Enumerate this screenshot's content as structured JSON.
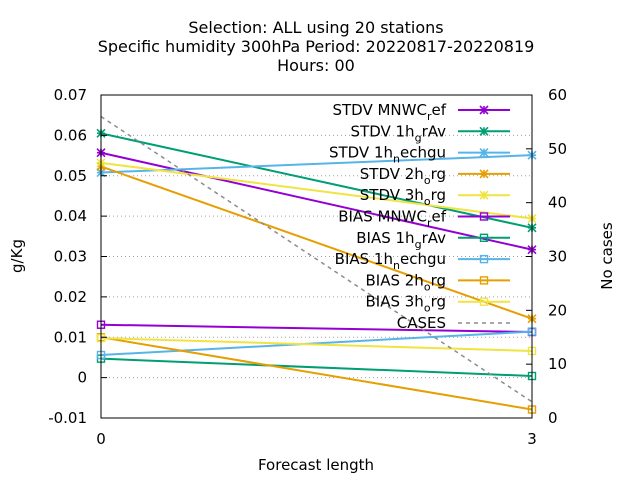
{
  "chart_data": {
    "type": "line",
    "title_lines": [
      "Selection: ALL using    20 stations",
      "Specific humidity 300hPa   Period: 20220817-20220819",
      "Hours:  00"
    ],
    "xlabel": "Forecast length",
    "ylabel": "g/Kg",
    "y2label": "No cases",
    "x": [
      0,
      3
    ],
    "x_ticks": [
      "0",
      "3"
    ],
    "xlim": [
      0,
      3
    ],
    "ylim": [
      -0.01,
      0.07
    ],
    "y_ticks": [
      "-0.01",
      "0",
      "0.01",
      "0.02",
      "0.03",
      "0.04",
      "0.05",
      "0.06",
      "0.07"
    ],
    "y2lim": [
      0,
      60
    ],
    "y2_ticks": [
      "0",
      "10",
      "20",
      "30",
      "40",
      "50",
      "60"
    ],
    "grid": "dotted horizontal",
    "legend_position": "top-right",
    "series": [
      {
        "name": "STDV MNWC_ref",
        "label_main": "STDV MNWC",
        "label_sub": "r",
        "label_rest": "ef",
        "axis": "y1",
        "marker": "x-star",
        "color": "#9400d3",
        "values": [
          0.0557,
          0.0317
        ]
      },
      {
        "name": "STDV 1h_grAv",
        "label_main": "STDV 1h",
        "label_sub": "g",
        "label_rest": "rAv",
        "axis": "y1",
        "marker": "x-star",
        "color": "#009e73",
        "values": [
          0.0605,
          0.0371
        ]
      },
      {
        "name": "STDV 1h_nechgu",
        "label_main": "STDV 1h",
        "label_sub": "n",
        "label_rest": "echgu",
        "axis": "y1",
        "marker": "x-star",
        "color": "#56b4e9",
        "values": [
          0.0508,
          0.0551
        ]
      },
      {
        "name": "STDV 2h_org",
        "label_main": "STDV 2h",
        "label_sub": "o",
        "label_rest": "rg",
        "axis": "y1",
        "marker": "x-star",
        "color": "#e69f00",
        "values": [
          0.0523,
          0.0146
        ]
      },
      {
        "name": "STDV 3h_org",
        "label_main": "STDV 3h",
        "label_sub": "o",
        "label_rest": "rg",
        "axis": "y1",
        "marker": "x-star",
        "color": "#f0e442",
        "values": [
          0.0532,
          0.0394
        ]
      },
      {
        "name": "BIAS MNWC_ref",
        "label_main": "BIAS MNWC",
        "label_sub": "r",
        "label_rest": "ef",
        "axis": "y1",
        "marker": "square",
        "color": "#9400d3",
        "values": [
          0.0131,
          0.0113
        ]
      },
      {
        "name": "BIAS 1h_grAv",
        "label_main": "BIAS 1h",
        "label_sub": "g",
        "label_rest": "rAv",
        "axis": "y1",
        "marker": "square",
        "color": "#009e73",
        "values": [
          0.0047,
          0.0004
        ]
      },
      {
        "name": "BIAS 1h_nechgu",
        "label_main": "BIAS 1h",
        "label_sub": "n",
        "label_rest": "echgu",
        "axis": "y1",
        "marker": "square",
        "color": "#56b4e9",
        "values": [
          0.0056,
          0.0114
        ]
      },
      {
        "name": "BIAS 2h_org",
        "label_main": "BIAS 2h",
        "label_sub": "o",
        "label_rest": "rg",
        "axis": "y1",
        "marker": "square",
        "color": "#e69f00",
        "values": [
          0.01,
          -0.0079
        ]
      },
      {
        "name": "BIAS 3h_org",
        "label_main": "BIAS 3h",
        "label_sub": "o",
        "label_rest": "rg",
        "axis": "y1",
        "marker": "square",
        "color": "#f0e442",
        "values": [
          0.0098,
          0.0066
        ]
      },
      {
        "name": "CASES",
        "label_main": "CASES",
        "label_sub": "",
        "label_rest": "",
        "axis": "y2",
        "marker": "none",
        "color": "#8c8c8c",
        "dashed": true,
        "values": [
          56,
          3
        ]
      }
    ]
  }
}
